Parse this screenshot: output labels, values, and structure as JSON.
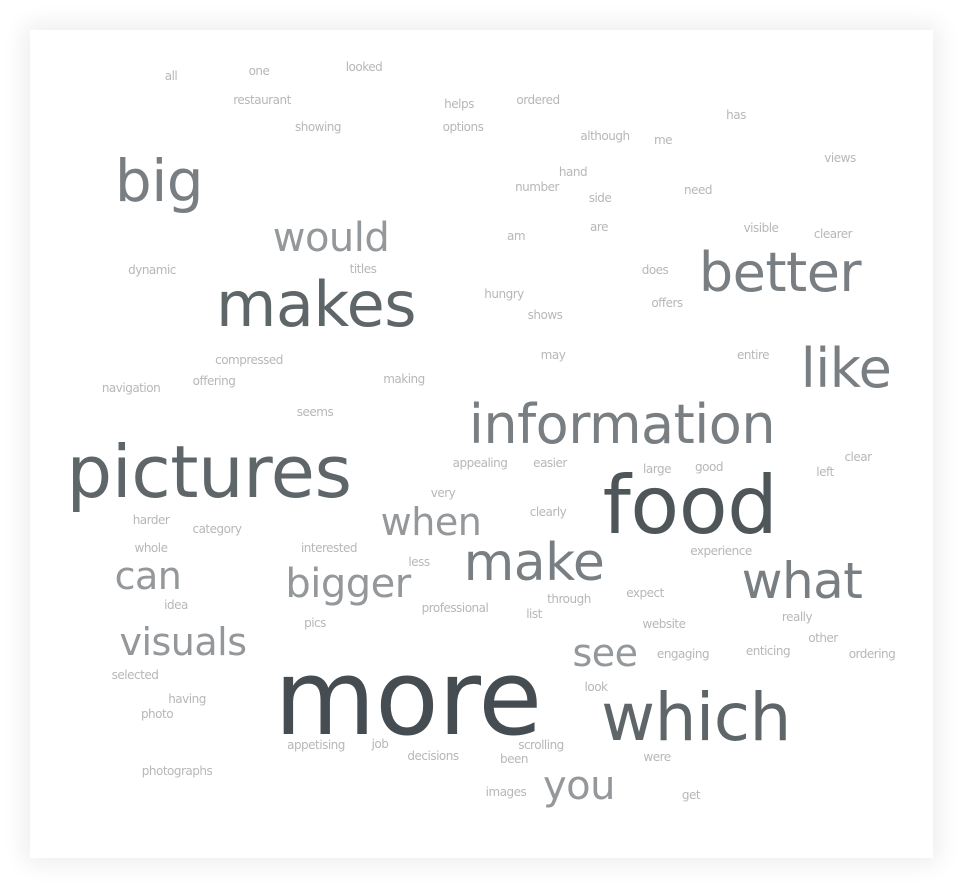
{
  "word_cloud": {
    "words": [
      {
        "text": "all",
        "color": "#b6b8b8"
      },
      {
        "text": "one",
        "color": "#b6b8b8"
      },
      {
        "text": "looked",
        "color": "#b6b8b8"
      },
      {
        "text": "restaurant",
        "color": "#b6b8b8"
      },
      {
        "text": "helps",
        "color": "#b6b8b8"
      },
      {
        "text": "ordered",
        "color": "#b6b8b8"
      },
      {
        "text": "has",
        "color": "#b6b8b8"
      },
      {
        "text": "showing",
        "color": "#b6b8b8"
      },
      {
        "text": "options",
        "color": "#b6b8b8"
      },
      {
        "text": "although",
        "color": "#b6b8b8"
      },
      {
        "text": "me",
        "color": "#b6b8b8"
      },
      {
        "text": "views",
        "color": "#b6b8b8"
      },
      {
        "text": "hand",
        "color": "#b6b8b8"
      },
      {
        "text": "big",
        "color": "#787e81"
      },
      {
        "text": "number",
        "color": "#b6b8b8"
      },
      {
        "text": "need",
        "color": "#b6b8b8"
      },
      {
        "text": "side",
        "color": "#b6b8b8"
      },
      {
        "text": "are",
        "color": "#b6b8b8"
      },
      {
        "text": "visible",
        "color": "#b6b8b8"
      },
      {
        "text": "would",
        "color": "#94989a"
      },
      {
        "text": "am",
        "color": "#b6b8b8"
      },
      {
        "text": "clearer",
        "color": "#b6b8b8"
      },
      {
        "text": "dynamic",
        "color": "#b6b8b8"
      },
      {
        "text": "titles",
        "color": "#b6b8b8"
      },
      {
        "text": "does",
        "color": "#b6b8b8"
      },
      {
        "text": "better",
        "color": "#787e81"
      },
      {
        "text": "makes",
        "color": "#5f666a"
      },
      {
        "text": "hungry",
        "color": "#b6b8b8"
      },
      {
        "text": "offers",
        "color": "#b6b8b8"
      },
      {
        "text": "shows",
        "color": "#b6b8b8"
      },
      {
        "text": "compressed",
        "color": "#b6b8b8"
      },
      {
        "text": "may",
        "color": "#b6b8b8"
      },
      {
        "text": "entire",
        "color": "#b6b8b8"
      },
      {
        "text": "like",
        "color": "#787e81"
      },
      {
        "text": "navigation",
        "color": "#b6b8b8"
      },
      {
        "text": "offering",
        "color": "#b6b8b8"
      },
      {
        "text": "making",
        "color": "#b6b8b8"
      },
      {
        "text": "seems",
        "color": "#b6b8b8"
      },
      {
        "text": "information",
        "color": "#787e81"
      },
      {
        "text": "pictures",
        "color": "#5f666a"
      },
      {
        "text": "clear",
        "color": "#b6b8b8"
      },
      {
        "text": "appealing",
        "color": "#b6b8b8"
      },
      {
        "text": "easier",
        "color": "#b6b8b8"
      },
      {
        "text": "large",
        "color": "#b6b8b8"
      },
      {
        "text": "good",
        "color": "#b6b8b8"
      },
      {
        "text": "left",
        "color": "#b6b8b8"
      },
      {
        "text": "food",
        "color": "#4f565a"
      },
      {
        "text": "very",
        "color": "#b6b8b8"
      },
      {
        "text": "harder",
        "color": "#b6b8b8"
      },
      {
        "text": "clearly",
        "color": "#b6b8b8"
      },
      {
        "text": "when",
        "color": "#94989a"
      },
      {
        "text": "category",
        "color": "#b6b8b8"
      },
      {
        "text": "whole",
        "color": "#b6b8b8"
      },
      {
        "text": "interested",
        "color": "#b6b8b8"
      },
      {
        "text": "experience",
        "color": "#b6b8b8"
      },
      {
        "text": "make",
        "color": "#787e81"
      },
      {
        "text": "less",
        "color": "#b6b8b8"
      },
      {
        "text": "can",
        "color": "#94989a"
      },
      {
        "text": "what",
        "color": "#787e81"
      },
      {
        "text": "bigger",
        "color": "#94989a"
      },
      {
        "text": "expect",
        "color": "#b6b8b8"
      },
      {
        "text": "through",
        "color": "#b6b8b8"
      },
      {
        "text": "idea",
        "color": "#b6b8b8"
      },
      {
        "text": "professional",
        "color": "#b6b8b8"
      },
      {
        "text": "list",
        "color": "#b6b8b8"
      },
      {
        "text": "really",
        "color": "#b6b8b8"
      },
      {
        "text": "pics",
        "color": "#b6b8b8"
      },
      {
        "text": "website",
        "color": "#b6b8b8"
      },
      {
        "text": "visuals",
        "color": "#94989a"
      },
      {
        "text": "other",
        "color": "#b6b8b8"
      },
      {
        "text": "see",
        "color": "#94989a"
      },
      {
        "text": "engaging",
        "color": "#b6b8b8"
      },
      {
        "text": "enticing",
        "color": "#b6b8b8"
      },
      {
        "text": "ordering",
        "color": "#b6b8b8"
      },
      {
        "text": "selected",
        "color": "#b6b8b8"
      },
      {
        "text": "look",
        "color": "#b6b8b8"
      },
      {
        "text": "having",
        "color": "#b6b8b8"
      },
      {
        "text": "more",
        "color": "#454d52"
      },
      {
        "text": "photo",
        "color": "#b6b8b8"
      },
      {
        "text": "which",
        "color": "#5f666a"
      },
      {
        "text": "appetising",
        "color": "#b6b8b8"
      },
      {
        "text": "job",
        "color": "#b6b8b8"
      },
      {
        "text": "scrolling",
        "color": "#b6b8b8"
      },
      {
        "text": "decisions",
        "color": "#b6b8b8"
      },
      {
        "text": "been",
        "color": "#b6b8b8"
      },
      {
        "text": "were",
        "color": "#b6b8b8"
      },
      {
        "text": "photographs",
        "color": "#b6b8b8"
      },
      {
        "text": "you",
        "color": "#94989a"
      },
      {
        "text": "images",
        "color": "#b6b8b8"
      },
      {
        "text": "get",
        "color": "#b6b8b8"
      }
    ]
  }
}
